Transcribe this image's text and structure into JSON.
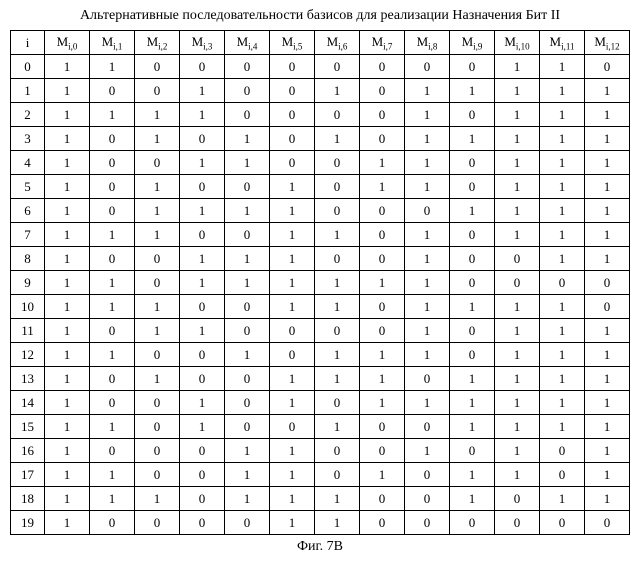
{
  "title": "Альтернативные последовательности базисов для реализации Назначения Бит II",
  "caption": "Фиг. 7B",
  "headers": {
    "index": "i",
    "cols": [
      {
        "sym": "M",
        "sub": "i,0"
      },
      {
        "sym": "M",
        "sub": "i,1"
      },
      {
        "sym": "M",
        "sub": "i,2"
      },
      {
        "sym": "M",
        "sub": "i,3"
      },
      {
        "sym": "M",
        "sub": "i,4"
      },
      {
        "sym": "M",
        "sub": "i,5"
      },
      {
        "sym": "M",
        "sub": "i,6"
      },
      {
        "sym": "M",
        "sub": "i,7"
      },
      {
        "sym": "M",
        "sub": "i,8"
      },
      {
        "sym": "M",
        "sub": "i,9"
      },
      {
        "sym": "M",
        "sub": "i,10"
      },
      {
        "sym": "M",
        "sub": "i,11"
      },
      {
        "sym": "M",
        "sub": "i,12"
      }
    ]
  },
  "rows": [
    {
      "i": "0",
      "v": [
        "1",
        "1",
        "0",
        "0",
        "0",
        "0",
        "0",
        "0",
        "0",
        "0",
        "1",
        "1",
        "0"
      ]
    },
    {
      "i": "1",
      "v": [
        "1",
        "0",
        "0",
        "1",
        "0",
        "0",
        "1",
        "0",
        "1",
        "1",
        "1",
        "1",
        "1"
      ]
    },
    {
      "i": "2",
      "v": [
        "1",
        "1",
        "1",
        "1",
        "0",
        "0",
        "0",
        "0",
        "1",
        "0",
        "1",
        "1",
        "1"
      ]
    },
    {
      "i": "3",
      "v": [
        "1",
        "0",
        "1",
        "0",
        "1",
        "0",
        "1",
        "0",
        "1",
        "1",
        "1",
        "1",
        "1"
      ]
    },
    {
      "i": "4",
      "v": [
        "1",
        "0",
        "0",
        "1",
        "1",
        "0",
        "0",
        "1",
        "1",
        "0",
        "1",
        "1",
        "1"
      ]
    },
    {
      "i": "5",
      "v": [
        "1",
        "0",
        "1",
        "0",
        "0",
        "1",
        "0",
        "1",
        "1",
        "0",
        "1",
        "1",
        "1"
      ]
    },
    {
      "i": "6",
      "v": [
        "1",
        "0",
        "1",
        "1",
        "1",
        "1",
        "0",
        "0",
        "0",
        "1",
        "1",
        "1",
        "1"
      ]
    },
    {
      "i": "7",
      "v": [
        "1",
        "1",
        "1",
        "0",
        "0",
        "1",
        "1",
        "0",
        "1",
        "0",
        "1",
        "1",
        "1"
      ]
    },
    {
      "i": "8",
      "v": [
        "1",
        "0",
        "0",
        "1",
        "1",
        "1",
        "0",
        "0",
        "1",
        "0",
        "0",
        "1",
        "1"
      ]
    },
    {
      "i": "9",
      "v": [
        "1",
        "1",
        "0",
        "1",
        "1",
        "1",
        "1",
        "1",
        "1",
        "0",
        "0",
        "0",
        "0"
      ]
    },
    {
      "i": "10",
      "v": [
        "1",
        "1",
        "1",
        "0",
        "0",
        "1",
        "1",
        "0",
        "1",
        "1",
        "1",
        "1",
        "0"
      ]
    },
    {
      "i": "11",
      "v": [
        "1",
        "0",
        "1",
        "1",
        "0",
        "0",
        "0",
        "0",
        "1",
        "0",
        "1",
        "1",
        "1"
      ]
    },
    {
      "i": "12",
      "v": [
        "1",
        "1",
        "0",
        "0",
        "1",
        "0",
        "1",
        "1",
        "1",
        "0",
        "1",
        "1",
        "1"
      ]
    },
    {
      "i": "13",
      "v": [
        "1",
        "0",
        "1",
        "0",
        "0",
        "1",
        "1",
        "1",
        "0",
        "1",
        "1",
        "1",
        "1"
      ]
    },
    {
      "i": "14",
      "v": [
        "1",
        "0",
        "0",
        "1",
        "0",
        "1",
        "0",
        "1",
        "1",
        "1",
        "1",
        "1",
        "1"
      ]
    },
    {
      "i": "15",
      "v": [
        "1",
        "1",
        "0",
        "1",
        "0",
        "0",
        "1",
        "0",
        "0",
        "1",
        "1",
        "1",
        "1"
      ]
    },
    {
      "i": "16",
      "v": [
        "1",
        "0",
        "0",
        "0",
        "1",
        "1",
        "0",
        "0",
        "1",
        "0",
        "1",
        "0",
        "1"
      ]
    },
    {
      "i": "17",
      "v": [
        "1",
        "1",
        "0",
        "0",
        "1",
        "1",
        "0",
        "1",
        "0",
        "1",
        "1",
        "0",
        "1"
      ]
    },
    {
      "i": "18",
      "v": [
        "1",
        "1",
        "1",
        "0",
        "1",
        "1",
        "1",
        "0",
        "0",
        "1",
        "0",
        "1",
        "1"
      ]
    },
    {
      "i": "19",
      "v": [
        "1",
        "0",
        "0",
        "0",
        "0",
        "1",
        "1",
        "0",
        "0",
        "0",
        "0",
        "0",
        "0"
      ]
    }
  ]
}
